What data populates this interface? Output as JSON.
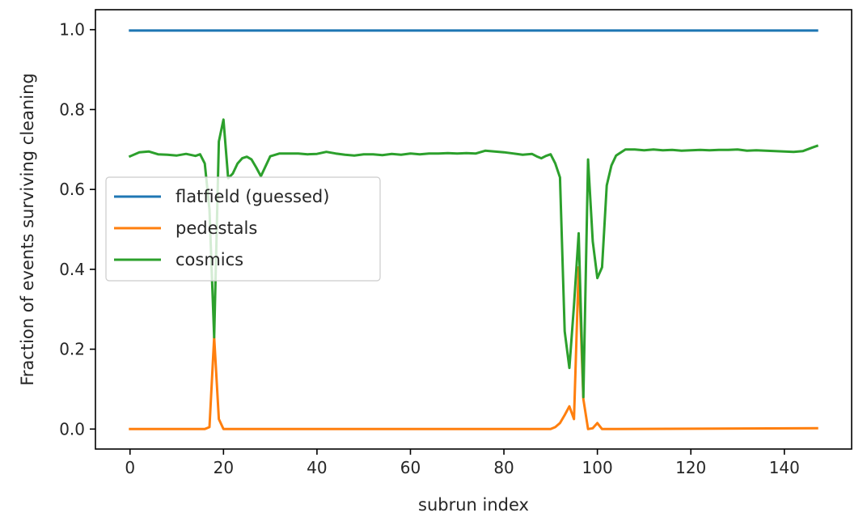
{
  "chart_data": {
    "type": "line",
    "title": "",
    "xlabel": "subrun index",
    "ylabel": "Fraction of events surviving cleaning",
    "xlim": [
      -7.4,
      154.4
    ],
    "ylim": [
      -0.05,
      1.05
    ],
    "xticks": [
      0,
      20,
      40,
      60,
      80,
      100,
      120,
      140
    ],
    "xtick_labels": [
      "0",
      "20",
      "40",
      "60",
      "80",
      "100",
      "120",
      "140"
    ],
    "yticks": [
      0.0,
      0.2,
      0.4,
      0.6,
      0.8,
      1.0
    ],
    "ytick_labels": [
      "0.0",
      "0.2",
      "0.4",
      "0.6",
      "0.8",
      "1.0"
    ],
    "grid": false,
    "legend_position": "center-left",
    "series": [
      {
        "name": "flatfield (guessed)",
        "color": "#1f77b4",
        "x": [
          0,
          147
        ],
        "y": [
          0.998,
          0.998
        ]
      },
      {
        "name": "pedestals",
        "color": "#ff7f0e",
        "x": [
          0,
          16,
          17,
          18,
          19,
          20,
          21,
          88,
          89,
          90,
          91,
          92,
          93,
          94,
          95,
          96,
          97,
          98,
          99,
          100,
          101,
          147
        ],
        "y": [
          0.0,
          0.0,
          0.005,
          0.23,
          0.025,
          0.0,
          0.0,
          0.0,
          0.0,
          0.0,
          0.005,
          0.015,
          0.035,
          0.057,
          0.025,
          0.405,
          0.075,
          0.0,
          0.002,
          0.015,
          0.0,
          0.002
        ]
      },
      {
        "name": "cosmics",
        "color": "#2ca02c",
        "x": [
          0,
          2,
          4,
          6,
          8,
          10,
          12,
          14,
          15,
          16,
          17,
          18,
          19,
          20,
          21,
          22,
          23,
          24,
          25,
          26,
          27,
          28,
          30,
          32,
          34,
          36,
          38,
          40,
          42,
          44,
          46,
          48,
          50,
          52,
          54,
          56,
          58,
          60,
          62,
          64,
          66,
          68,
          70,
          72,
          74,
          76,
          78,
          80,
          82,
          84,
          86,
          87,
          88,
          89,
          90,
          91,
          92,
          93,
          94,
          95,
          96,
          97,
          98,
          99,
          100,
          101,
          102,
          103,
          104,
          106,
          108,
          110,
          112,
          114,
          116,
          118,
          120,
          122,
          124,
          126,
          128,
          130,
          132,
          134,
          136,
          138,
          140,
          142,
          144,
          146,
          147
        ],
        "y": [
          0.683,
          0.693,
          0.695,
          0.688,
          0.687,
          0.685,
          0.689,
          0.684,
          0.688,
          0.665,
          0.55,
          0.23,
          0.72,
          0.775,
          0.628,
          0.64,
          0.665,
          0.678,
          0.682,
          0.675,
          0.655,
          0.633,
          0.683,
          0.69,
          0.69,
          0.69,
          0.688,
          0.689,
          0.694,
          0.69,
          0.687,
          0.685,
          0.688,
          0.688,
          0.686,
          0.689,
          0.687,
          0.69,
          0.688,
          0.69,
          0.69,
          0.691,
          0.69,
          0.691,
          0.69,
          0.697,
          0.695,
          0.693,
          0.69,
          0.687,
          0.689,
          0.683,
          0.678,
          0.684,
          0.688,
          0.665,
          0.63,
          0.245,
          0.153,
          0.31,
          0.49,
          0.08,
          0.675,
          0.47,
          0.378,
          0.405,
          0.61,
          0.66,
          0.685,
          0.7,
          0.7,
          0.698,
          0.7,
          0.698,
          0.699,
          0.697,
          0.698,
          0.699,
          0.698,
          0.699,
          0.699,
          0.7,
          0.697,
          0.698,
          0.697,
          0.696,
          0.695,
          0.694,
          0.696,
          0.705,
          0.709
        ]
      }
    ]
  }
}
